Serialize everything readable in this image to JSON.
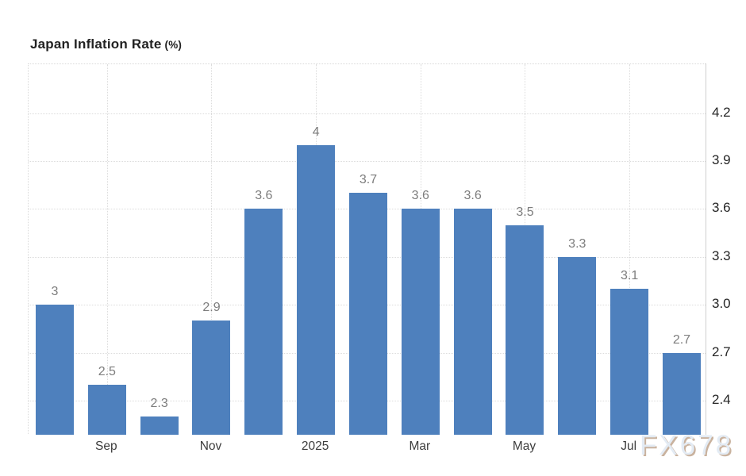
{
  "chart": {
    "title": "Japan Inflation Rate",
    "unit": "(%)",
    "watermark": "FX678"
  },
  "chart_data": {
    "type": "bar",
    "title": "Japan Inflation Rate (%)",
    "xlabel": "",
    "ylabel": "",
    "values": [
      3,
      2.5,
      2.3,
      2.9,
      3.6,
      4,
      3.7,
      3.6,
      3.6,
      3.5,
      3.3,
      3.1,
      2.7
    ],
    "value_labels": [
      "3",
      "2.5",
      "2.3",
      "2.9",
      "3.6",
      "4",
      "3.7",
      "3.6",
      "3.6",
      "3.5",
      "3.3",
      "3.1",
      "2.7"
    ],
    "xticks": [
      {
        "bar_index": 1,
        "label": "Sep"
      },
      {
        "bar_index": 3,
        "label": "Nov"
      },
      {
        "bar_index": 5,
        "label": "2025"
      },
      {
        "bar_index": 7,
        "label": "Mar"
      },
      {
        "bar_index": 9,
        "label": "May"
      },
      {
        "bar_index": 11,
        "label": "Jul"
      }
    ],
    "yticks": [
      4.2,
      3.9,
      3.6,
      3.3,
      3.0,
      2.7,
      2.4
    ],
    "ytick_labels": [
      "4.2",
      "3.9",
      "3.6",
      "3.3",
      "3.0",
      "2.7",
      "2.4"
    ],
    "ylim": [
      2.19,
      4.5
    ],
    "yaxis_side": "right",
    "grid": "dotted",
    "legend": "none",
    "bar_color": "#4e80bd",
    "value_label_color": "#7d7d7d",
    "ytick_color": "#262626",
    "xtick_color": "#3d3d3d"
  }
}
